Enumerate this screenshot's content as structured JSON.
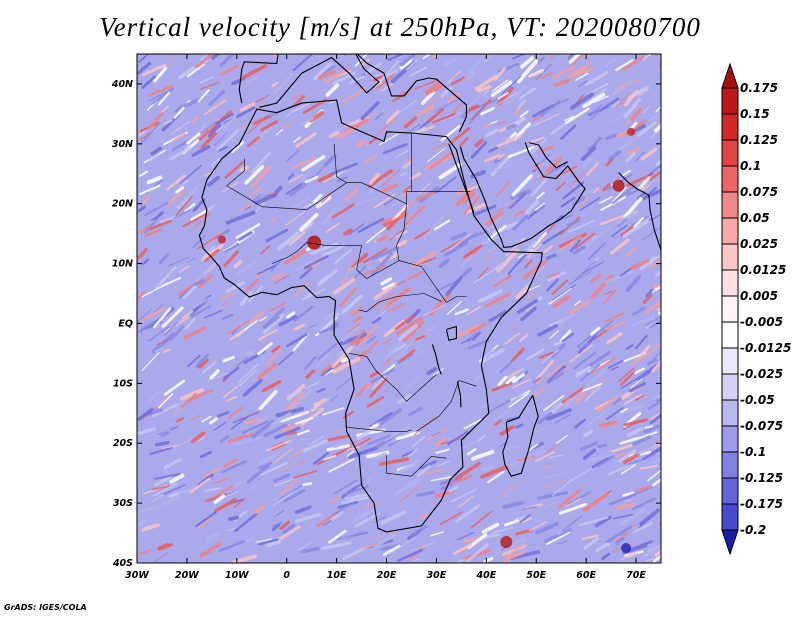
{
  "title": "Vertical velocity [m/s] at 250hPa, VT: 2020080700",
  "credit": "GrADS: IGES/COLA",
  "map": {
    "variable": "Vertical velocity",
    "units": "m/s",
    "level": "250hPa",
    "valid_time": "2020080700",
    "lon_range": [
      -30,
      75
    ],
    "lat_range": [
      -40,
      45
    ],
    "x_ticks": [
      {
        "value": -30,
        "label": "30W"
      },
      {
        "value": -20,
        "label": "20W"
      },
      {
        "value": -10,
        "label": "10W"
      },
      {
        "value": 0,
        "label": "0"
      },
      {
        "value": 10,
        "label": "10E"
      },
      {
        "value": 20,
        "label": "20E"
      },
      {
        "value": 30,
        "label": "30E"
      },
      {
        "value": 40,
        "label": "40E"
      },
      {
        "value": 50,
        "label": "50E"
      },
      {
        "value": 60,
        "label": "60E"
      },
      {
        "value": 70,
        "label": "70E"
      }
    ],
    "y_ticks": [
      {
        "value": 40,
        "label": "40N"
      },
      {
        "value": 30,
        "label": "30N"
      },
      {
        "value": 20,
        "label": "20N"
      },
      {
        "value": 10,
        "label": "10N"
      },
      {
        "value": 0,
        "label": "EQ"
      },
      {
        "value": -10,
        "label": "10S"
      },
      {
        "value": -20,
        "label": "20S"
      },
      {
        "value": -30,
        "label": "30S"
      },
      {
        "value": -40,
        "label": "40S"
      }
    ]
  },
  "colorbar": {
    "levels": [
      {
        "label": "0.175",
        "color": "#c01818"
      },
      {
        "label": "0.15",
        "color": "#d42828"
      },
      {
        "label": "0.125",
        "color": "#e24444"
      },
      {
        "label": "0.1",
        "color": "#ec6464"
      },
      {
        "label": "0.075",
        "color": "#f28888"
      },
      {
        "label": "0.05",
        "color": "#f7a8a8"
      },
      {
        "label": "0.025",
        "color": "#fbc6c6"
      },
      {
        "label": "0.0125",
        "color": "#fde0e0"
      },
      {
        "label": "0.005",
        "color": "#fff2f2"
      },
      {
        "label": "-0.005",
        "color": "#ffffff"
      },
      {
        "label": "-0.0125",
        "color": "#e8e8fb"
      },
      {
        "label": "-0.025",
        "color": "#d2d2f6"
      },
      {
        "label": "-0.05",
        "color": "#b8b8f0"
      },
      {
        "label": "-0.075",
        "color": "#9c9cea"
      },
      {
        "label": "-0.1",
        "color": "#8080e2"
      },
      {
        "label": "-0.125",
        "color": "#6464da"
      },
      {
        "label": "-0.175",
        "color": "#4848d0"
      },
      {
        "label": "-0.2",
        "color": "#2c2cc0"
      }
    ],
    "top_color": "#a81010",
    "bottom_color": "#1c1caa"
  }
}
